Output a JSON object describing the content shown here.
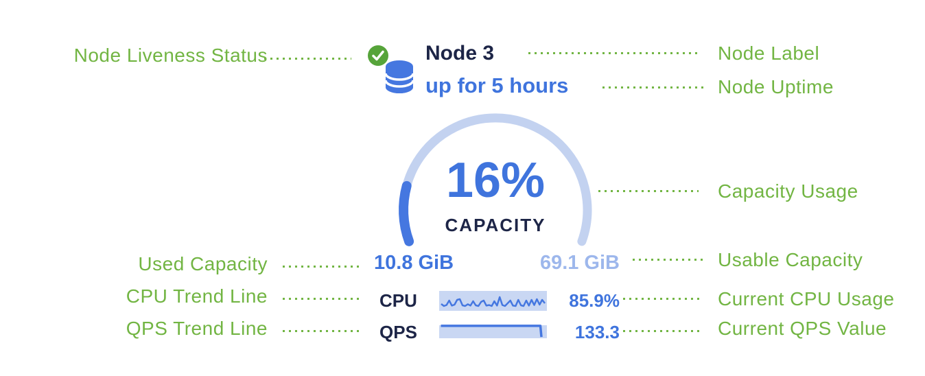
{
  "colors": {
    "annotation_green": "#72b543",
    "status_green": "#56a43a",
    "navy": "#1d2547",
    "blue": "#3f74dd",
    "icon_blue": "#4577e0",
    "light_blue_text": "#9db7ec",
    "gauge_track": "#c3d2f0",
    "spark_background": "#c9d7f3"
  },
  "node": {
    "label": "Node 3",
    "uptime": "up for 5 hours"
  },
  "gauge": {
    "percent": 16,
    "percent_label": "16%",
    "caption": "CAPACITY",
    "used_label": "10.8 GiB",
    "usable_label": "69.1 GiB",
    "arc_degrees": 220
  },
  "metrics": {
    "cpu": {
      "label": "CPU",
      "value": "85.9%"
    },
    "qps": {
      "label": "QPS",
      "value": "133.3"
    }
  },
  "sparklines": {
    "cpu": [
      0.3,
      0.15,
      0.22,
      0.55,
      0.18,
      0.25,
      0.6,
      0.65,
      0.2,
      0.15,
      0.28,
      0.18,
      0.5,
      0.2,
      0.15,
      0.45,
      0.55,
      0.18,
      0.22,
      0.15,
      0.5,
      0.18,
      0.8,
      0.22,
      0.15,
      0.35,
      0.55,
      0.18,
      0.15,
      0.6,
      0.2,
      0.15,
      0.55,
      0.18,
      0.6,
      0.22,
      0.65,
      0.25,
      0.6,
      0.35
    ],
    "qps": [
      [
        0.01,
        0.9
      ],
      [
        0.945,
        0.9
      ],
      [
        0.955,
        0.05
      ]
    ]
  },
  "annotations": {
    "left": [
      {
        "label": "Node Liveness Status"
      },
      {
        "label": "Used Capacity"
      },
      {
        "label": "CPU Trend Line"
      },
      {
        "label": "QPS Trend Line"
      }
    ],
    "right": [
      {
        "label": "Node Label"
      },
      {
        "label": "Node Uptime"
      },
      {
        "label": "Capacity Usage"
      },
      {
        "label": "Usable Capacity"
      },
      {
        "label": "Current CPU Usage"
      },
      {
        "label": "Current QPS Value"
      }
    ]
  },
  "chart_data": {
    "type": "gauge",
    "title": "CAPACITY",
    "value_pct": 16,
    "used": "10.8 GiB",
    "usable": "69.1 GiB",
    "related_metrics": [
      {
        "name": "CPU",
        "current": "85.9%",
        "display": "sparkline"
      },
      {
        "name": "QPS",
        "current": "133.3",
        "display": "area"
      }
    ]
  }
}
